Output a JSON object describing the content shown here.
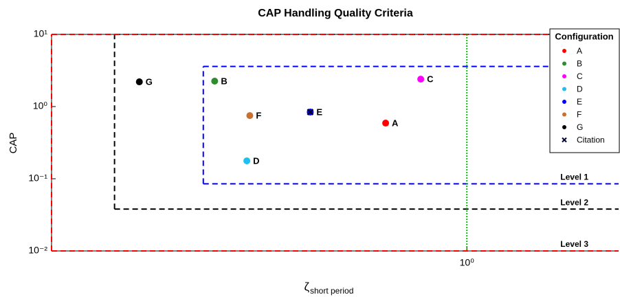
{
  "chart_data": {
    "type": "scatter",
    "title": "CAP Handling Quality Criteria",
    "xlabel": "ζ",
    "xlabel_sub": "short period",
    "ylabel": "CAP",
    "log_x": true,
    "log_y": true,
    "xlim": [
      0.15,
      2
    ],
    "ylim": [
      0.01,
      10
    ],
    "xticks": [
      {
        "value": 1,
        "label": "10⁰"
      }
    ],
    "yticks": [
      {
        "value": 0.01,
        "label": "10⁻²"
      },
      {
        "value": 0.1,
        "label": "10⁻¹"
      },
      {
        "value": 1,
        "label": "10⁰"
      },
      {
        "value": 10,
        "label": "10¹"
      }
    ],
    "legend_title": "Configuration",
    "legend_position": "upper right",
    "boundaries": [
      {
        "name": "Level 1",
        "color": "#0000ff",
        "x": [
          0.3,
          2
        ],
        "y": [
          0.085,
          3.6
        ]
      },
      {
        "name": "Level 2",
        "color": "#000000",
        "x": [
          0.2,
          2
        ],
        "y": [
          0.038,
          10
        ]
      },
      {
        "name": "Level 3",
        "color": "#ff0000",
        "x": [
          0.15,
          2
        ],
        "y": [
          0.01,
          10
        ]
      }
    ],
    "vline": {
      "x": 1,
      "color": "#00c000"
    },
    "series": [
      {
        "name": "A",
        "color": "#ff0000",
        "marker": "o",
        "x": [
          0.69
        ],
        "values": [
          0.59
        ]
      },
      {
        "name": "B",
        "color": "#2e8b2e",
        "marker": "o",
        "x": [
          0.316
        ],
        "values": [
          2.25
        ]
      },
      {
        "name": "C",
        "color": "#ff00ff",
        "marker": "o",
        "x": [
          0.81
        ],
        "values": [
          2.4
        ]
      },
      {
        "name": "D",
        "color": "#1ec0f0",
        "marker": "o",
        "x": [
          0.366
        ],
        "values": [
          0.177
        ]
      },
      {
        "name": "E",
        "color": "#0000ff",
        "marker": "o",
        "x": [
          0.489
        ],
        "values": [
          0.84
        ]
      },
      {
        "name": "F",
        "color": "#c87030",
        "marker": "o",
        "x": [
          0.371
        ],
        "values": [
          0.75
        ]
      },
      {
        "name": "G",
        "color": "#000000",
        "marker": "o",
        "x": [
          0.224
        ],
        "values": [
          2.2
        ]
      },
      {
        "name": "Citation",
        "color": "#000033",
        "marker": "x",
        "x": [
          0.489
        ],
        "values": [
          0.84
        ]
      }
    ]
  }
}
